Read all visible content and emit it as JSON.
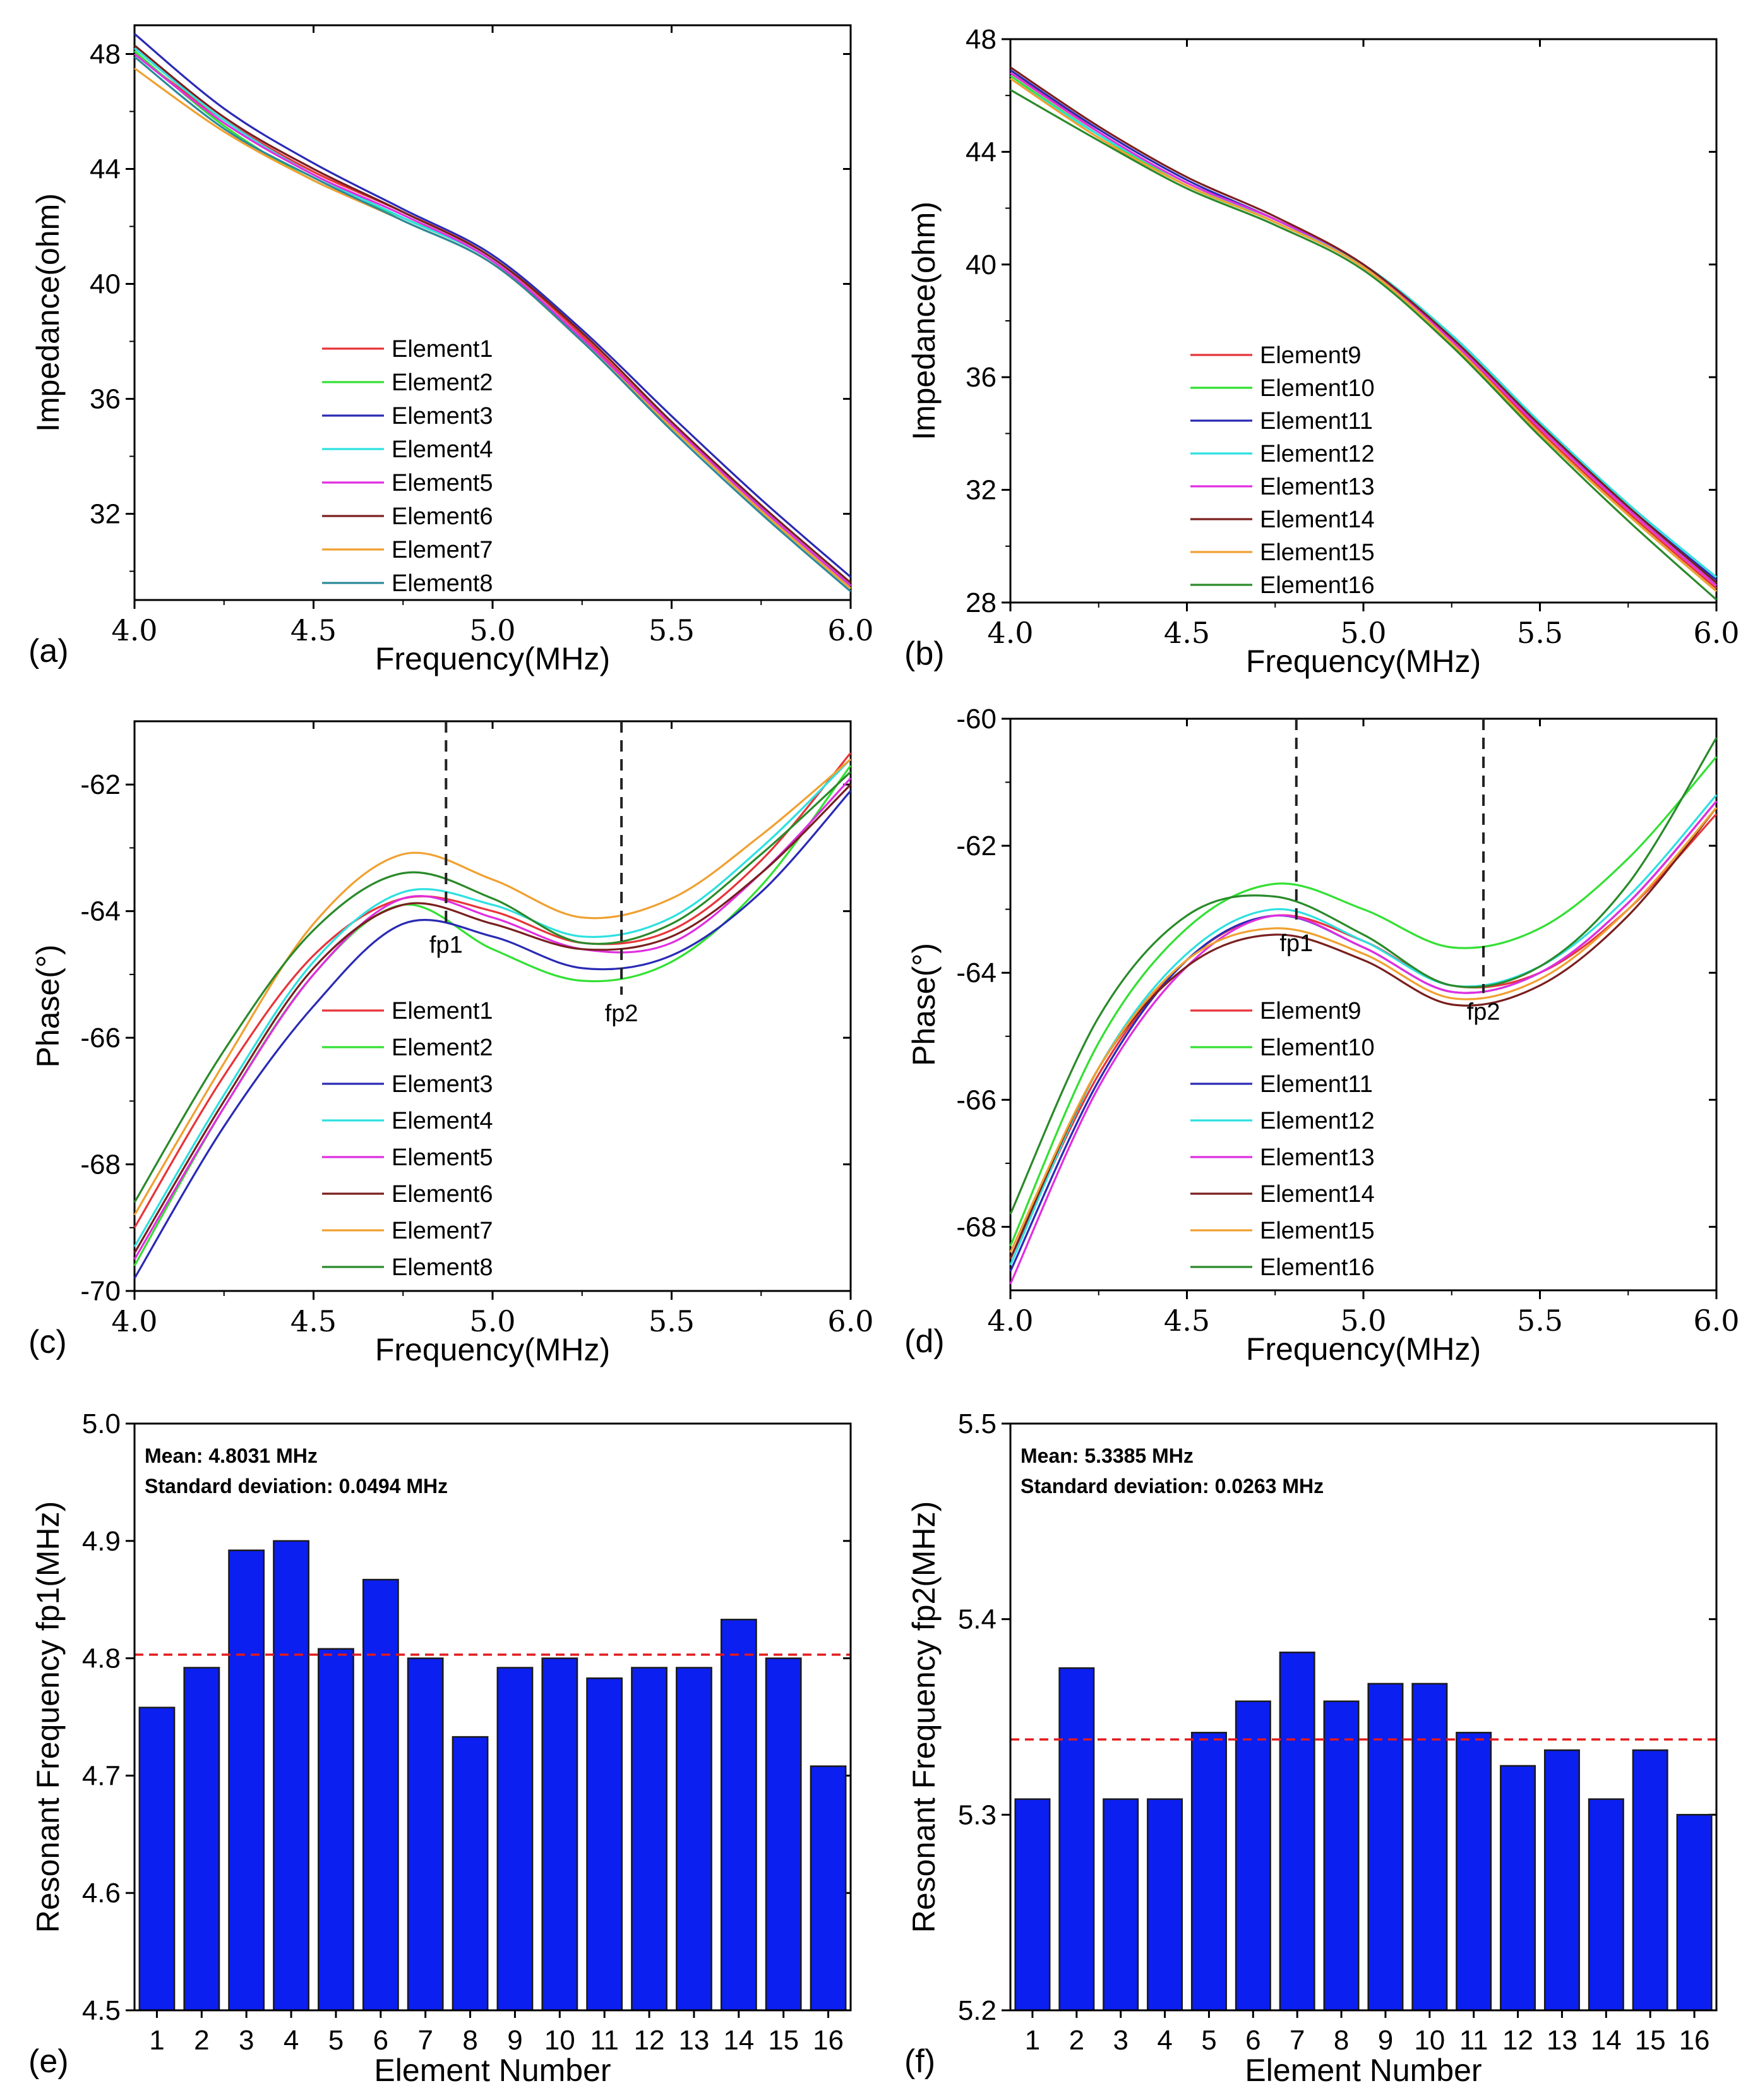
{
  "panels": [
    {
      "id": "a",
      "label": "(a)",
      "kind": "line",
      "xlabel": "Frequency(MHz)",
      "ylabel": "Impedance(ohm)",
      "xlim": [
        4.0,
        6.0
      ],
      "ylim": [
        29,
        49
      ],
      "xticks": [
        4.0,
        4.5,
        5.0,
        5.5,
        6.0
      ],
      "xtick_labels": [
        "4.0",
        "4.5",
        "5.0",
        "5.5",
        "6.0"
      ],
      "yticks": [
        32,
        36,
        40,
        44,
        48
      ],
      "ytick_labels": [
        "32",
        "36",
        "40",
        "44",
        "48"
      ],
      "x": [
        4.0,
        4.25,
        4.5,
        4.75,
        5.0,
        5.25,
        5.5,
        5.75,
        6.0
      ],
      "series": [
        {
          "name": "Element1",
          "color": "#e8343a",
          "values": [
            48.0,
            45.7,
            43.9,
            42.5,
            40.9,
            38.2,
            35.1,
            32.2,
            29.5
          ]
        },
        {
          "name": "Element2",
          "color": "#33e033",
          "values": [
            48.1,
            45.5,
            43.6,
            42.3,
            40.8,
            38.0,
            35.0,
            32.1,
            29.4
          ]
        },
        {
          "name": "Element3",
          "color": "#2a2ab5",
          "values": [
            48.7,
            46.1,
            44.2,
            42.6,
            41.0,
            38.4,
            35.4,
            32.5,
            29.8
          ]
        },
        {
          "name": "Element4",
          "color": "#2ee0e0",
          "values": [
            48.2,
            45.7,
            43.8,
            42.3,
            40.8,
            38.1,
            35.1,
            32.2,
            29.5
          ]
        },
        {
          "name": "Element5",
          "color": "#e02ee0",
          "values": [
            48.0,
            45.6,
            43.8,
            42.4,
            40.8,
            38.1,
            35.1,
            32.2,
            29.5
          ]
        },
        {
          "name": "Element6",
          "color": "#7a1f1f",
          "values": [
            48.3,
            45.8,
            44.0,
            42.5,
            40.9,
            38.3,
            35.2,
            32.3,
            29.6
          ]
        },
        {
          "name": "Element7",
          "color": "#f0a030",
          "values": [
            47.5,
            45.3,
            43.6,
            42.2,
            40.7,
            38.0,
            35.0,
            32.1,
            29.4
          ]
        },
        {
          "name": "Element8",
          "color": "#2c8a9a",
          "values": [
            47.9,
            45.4,
            43.7,
            42.2,
            40.7,
            38.0,
            34.9,
            32.0,
            29.3
          ]
        }
      ]
    },
    {
      "id": "b",
      "label": "(b)",
      "kind": "line",
      "xlabel": "Frequency(MHz)",
      "ylabel": "Impedance(ohm)",
      "xlim": [
        4.0,
        6.0
      ],
      "ylim": [
        28,
        48
      ],
      "xticks": [
        4.0,
        4.5,
        5.0,
        5.5,
        6.0
      ],
      "xtick_labels": [
        "4.0",
        "4.5",
        "5.0",
        "5.5",
        "6.0"
      ],
      "yticks": [
        28,
        32,
        36,
        40,
        44,
        48
      ],
      "ytick_labels": [
        "28",
        "32",
        "36",
        "40",
        "44",
        "48"
      ],
      "x": [
        4.0,
        4.25,
        4.5,
        4.75,
        5.0,
        5.25,
        5.5,
        5.75,
        6.0
      ],
      "series": [
        {
          "name": "Element9",
          "color": "#e8343a",
          "values": [
            46.9,
            44.7,
            42.9,
            41.6,
            40.0,
            37.3,
            34.1,
            31.2,
            28.5
          ]
        },
        {
          "name": "Element10",
          "color": "#33e033",
          "values": [
            46.7,
            44.6,
            42.8,
            41.5,
            39.9,
            37.2,
            34.0,
            31.1,
            28.4
          ]
        },
        {
          "name": "Element11",
          "color": "#2a2ab5",
          "values": [
            46.9,
            44.8,
            43.0,
            41.6,
            40.0,
            37.4,
            34.3,
            31.4,
            28.8
          ]
        },
        {
          "name": "Element12",
          "color": "#2ee0e0",
          "values": [
            46.6,
            44.6,
            42.9,
            41.5,
            40.0,
            37.5,
            34.4,
            31.5,
            28.9
          ]
        },
        {
          "name": "Element13",
          "color": "#e02ee0",
          "values": [
            46.8,
            44.7,
            42.9,
            41.6,
            40.0,
            37.3,
            34.2,
            31.3,
            28.6
          ]
        },
        {
          "name": "Element14",
          "color": "#7a1f1f",
          "values": [
            47.0,
            44.9,
            43.1,
            41.7,
            40.0,
            37.4,
            34.3,
            31.4,
            28.7
          ]
        },
        {
          "name": "Element15",
          "color": "#f0a030",
          "values": [
            46.6,
            44.5,
            42.8,
            41.5,
            39.9,
            37.2,
            34.0,
            31.1,
            28.4
          ]
        },
        {
          "name": "Element16",
          "color": "#2a8a2a",
          "values": [
            46.2,
            44.4,
            42.7,
            41.4,
            39.8,
            37.1,
            33.9,
            30.9,
            28.1
          ]
        }
      ]
    },
    {
      "id": "c",
      "label": "(c)",
      "kind": "line",
      "xlabel": "Frequency(MHz)",
      "ylabel": "Phase(°)",
      "xlim": [
        4.0,
        6.0
      ],
      "ylim": [
        -70,
        -61
      ],
      "xticks": [
        4.0,
        4.5,
        5.0,
        5.5,
        6.0
      ],
      "xtick_labels": [
        "4.0",
        "4.5",
        "5.0",
        "5.5",
        "6.0"
      ],
      "yticks": [
        -70,
        -68,
        -66,
        -64,
        -62
      ],
      "ytick_labels": [
        "-70",
        "-68",
        "-66",
        "-64",
        "-62"
      ],
      "vlines": [
        {
          "x": 4.87,
          "label": "fp1"
        },
        {
          "x": 5.36,
          "label": "fp2"
        }
      ],
      "x": [
        4.0,
        4.25,
        4.5,
        4.75,
        5.0,
        5.25,
        5.5,
        5.75,
        6.0
      ],
      "series": [
        {
          "name": "Element1",
          "color": "#e8343a",
          "values": [
            -69.0,
            -66.6,
            -64.7,
            -63.8,
            -64.0,
            -64.5,
            -64.3,
            -63.2,
            -61.5
          ]
        },
        {
          "name": "Element2",
          "color": "#33e033",
          "values": [
            -69.6,
            -67.1,
            -65.0,
            -63.9,
            -64.6,
            -65.1,
            -64.8,
            -63.6,
            -61.7
          ]
        },
        {
          "name": "Element3",
          "color": "#2a2ab5",
          "values": [
            -69.8,
            -67.4,
            -65.5,
            -64.2,
            -64.4,
            -64.9,
            -64.7,
            -63.7,
            -62.1
          ]
        },
        {
          "name": "Element4",
          "color": "#2ee0e0",
          "values": [
            -69.3,
            -66.9,
            -64.8,
            -63.7,
            -63.9,
            -64.4,
            -64.1,
            -63.0,
            -61.6
          ]
        },
        {
          "name": "Element5",
          "color": "#e02ee0",
          "values": [
            -69.5,
            -67.1,
            -65.0,
            -63.8,
            -64.1,
            -64.6,
            -64.5,
            -63.4,
            -61.9
          ]
        },
        {
          "name": "Element6",
          "color": "#7a1f1f",
          "values": [
            -69.4,
            -67.0,
            -64.9,
            -63.9,
            -64.2,
            -64.6,
            -64.4,
            -63.4,
            -62.0
          ]
        },
        {
          "name": "Element7",
          "color": "#f0a030",
          "values": [
            -68.8,
            -66.4,
            -64.2,
            -63.1,
            -63.5,
            -64.1,
            -63.8,
            -62.8,
            -61.6
          ]
        },
        {
          "name": "Element8",
          "color": "#2a8a2a",
          "values": [
            -68.6,
            -66.2,
            -64.3,
            -63.4,
            -63.8,
            -64.5,
            -64.2,
            -63.1,
            -61.8
          ]
        }
      ]
    },
    {
      "id": "d",
      "label": "(d)",
      "kind": "line",
      "xlabel": "Frequency(MHz)",
      "ylabel": "Phase(°)",
      "xlim": [
        4.0,
        6.0
      ],
      "ylim": [
        -69,
        -60
      ],
      "xticks": [
        4.0,
        4.5,
        5.0,
        5.5,
        6.0
      ],
      "xtick_labels": [
        "4.0",
        "4.5",
        "5.0",
        "5.5",
        "6.0"
      ],
      "yticks": [
        -68,
        -66,
        -64,
        -62,
        -60
      ],
      "ytick_labels": [
        "-68",
        "-66",
        "-64",
        "-62",
        "-60"
      ],
      "vlines": [
        {
          "x": 4.81,
          "label": "fp1"
        },
        {
          "x": 5.34,
          "label": "fp2"
        }
      ],
      "x": [
        4.0,
        4.25,
        4.5,
        4.75,
        5.0,
        5.25,
        5.5,
        5.75,
        6.0
      ],
      "series": [
        {
          "name": "Element9",
          "color": "#e8343a",
          "values": [
            -68.5,
            -65.6,
            -63.8,
            -63.1,
            -63.5,
            -64.2,
            -64.0,
            -63.0,
            -61.5
          ]
        },
        {
          "name": "Element10",
          "color": "#33e033",
          "values": [
            -68.3,
            -65.1,
            -63.3,
            -62.6,
            -63.0,
            -63.6,
            -63.3,
            -62.2,
            -60.6
          ]
        },
        {
          "name": "Element11",
          "color": "#2a2ab5",
          "values": [
            -68.7,
            -65.7,
            -63.8,
            -63.1,
            -63.6,
            -64.3,
            -64.0,
            -62.9,
            -61.3
          ]
        },
        {
          "name": "Element12",
          "color": "#2ee0e0",
          "values": [
            -68.6,
            -65.5,
            -63.7,
            -63.0,
            -63.5,
            -64.2,
            -63.9,
            -62.8,
            -61.2
          ]
        },
        {
          "name": "Element13",
          "color": "#e02ee0",
          "values": [
            -68.9,
            -65.8,
            -63.9,
            -63.1,
            -63.6,
            -64.3,
            -64.0,
            -62.9,
            -61.3
          ]
        },
        {
          "name": "Element14",
          "color": "#7a1f1f",
          "values": [
            -68.5,
            -65.5,
            -63.9,
            -63.4,
            -63.8,
            -64.5,
            -64.2,
            -63.1,
            -61.4
          ]
        },
        {
          "name": "Element15",
          "color": "#f0a030",
          "values": [
            -68.4,
            -65.5,
            -63.8,
            -63.3,
            -63.7,
            -64.4,
            -64.1,
            -63.0,
            -61.4
          ]
        },
        {
          "name": "Element16",
          "color": "#2a8a2a",
          "values": [
            -67.8,
            -64.7,
            -63.1,
            -62.8,
            -63.4,
            -64.2,
            -63.9,
            -62.6,
            -60.3
          ]
        }
      ]
    },
    {
      "id": "e",
      "label": "(e)",
      "kind": "bar",
      "xlabel": "Element Number",
      "ylabel": "Resonant Frequency fp1(MHz)",
      "ylim": [
        4.5,
        5.0
      ],
      "yticks": [
        4.5,
        4.6,
        4.7,
        4.8,
        4.9,
        5.0
      ],
      "ytick_labels": [
        "4.5",
        "4.6",
        "4.7",
        "4.8",
        "4.9",
        "5.0"
      ],
      "categories": [
        "1",
        "2",
        "3",
        "4",
        "5",
        "6",
        "7",
        "8",
        "9",
        "10",
        "11",
        "12",
        "13",
        "14",
        "15",
        "16"
      ],
      "values": [
        4.758,
        4.792,
        4.892,
        4.9,
        4.808,
        4.867,
        4.8,
        4.733,
        4.792,
        4.8,
        4.783,
        4.792,
        4.792,
        4.833,
        4.8,
        4.708
      ],
      "mean_line": 4.8031,
      "bar_color": "#0b1ff0",
      "annotation": [
        "Mean: 4.8031 MHz",
        "Standard deviation: 0.0494 MHz"
      ]
    },
    {
      "id": "f",
      "label": "(f)",
      "kind": "bar",
      "xlabel": "Element Number",
      "ylabel": "Resonant Frequency fp2(MHz)",
      "ylim": [
        5.2,
        5.5
      ],
      "yticks": [
        5.2,
        5.3,
        5.4,
        5.5
      ],
      "ytick_labels": [
        "5.2",
        "5.3",
        "5.4",
        "5.5"
      ],
      "categories": [
        "1",
        "2",
        "3",
        "4",
        "5",
        "6",
        "7",
        "8",
        "9",
        "10",
        "11",
        "12",
        "13",
        "14",
        "15",
        "16"
      ],
      "values": [
        5.308,
        5.375,
        5.308,
        5.308,
        5.342,
        5.358,
        5.383,
        5.358,
        5.367,
        5.367,
        5.342,
        5.325,
        5.333,
        5.308,
        5.333,
        5.3
      ],
      "mean_line": 5.3385,
      "bar_color": "#0b1ff0",
      "annotation": [
        "Mean: 5.3385 MHz",
        "Standard deviation: 0.0263 MHz"
      ]
    }
  ]
}
